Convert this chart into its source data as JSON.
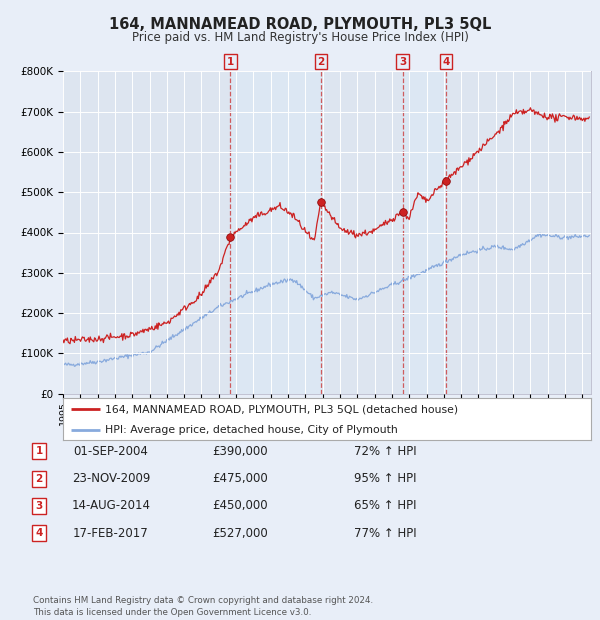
{
  "title": "164, MANNAMEAD ROAD, PLYMOUTH, PL3 5QL",
  "subtitle": "Price paid vs. HM Land Registry's House Price Index (HPI)",
  "ylim": [
    0,
    800000
  ],
  "yticks": [
    0,
    100000,
    200000,
    300000,
    400000,
    500000,
    600000,
    700000,
    800000
  ],
  "ytick_labels": [
    "£0",
    "£100K",
    "£200K",
    "£300K",
    "£400K",
    "£500K",
    "£600K",
    "£700K",
    "£800K"
  ],
  "xlim_start": 1995.0,
  "xlim_end": 2025.5,
  "bg_color": "#e8eef8",
  "plot_bg_color": "#dde5f0",
  "transactions": [
    {
      "label": "1",
      "date": 2004.67,
      "price": 390000,
      "pct": "72%",
      "date_str": "01-SEP-2004"
    },
    {
      "label": "2",
      "date": 2009.9,
      "price": 475000,
      "pct": "95%",
      "date_str": "23-NOV-2009"
    },
    {
      "label": "3",
      "date": 2014.62,
      "price": 450000,
      "pct": "65%",
      "date_str": "14-AUG-2014"
    },
    {
      "label": "4",
      "date": 2017.12,
      "price": 527000,
      "pct": "77%",
      "date_str": "17-FEB-2017"
    }
  ],
  "legend_line1": "164, MANNAMEAD ROAD, PLYMOUTH, PL3 5QL (detached house)",
  "legend_line2": "HPI: Average price, detached house, City of Plymouth",
  "footer": "Contains HM Land Registry data © Crown copyright and database right 2024.\nThis data is licensed under the Open Government Licence v3.0.",
  "red_color": "#cc2222",
  "blue_color": "#88aadd",
  "vline_color": "#cc4444",
  "shading_color": "#dce8f5"
}
